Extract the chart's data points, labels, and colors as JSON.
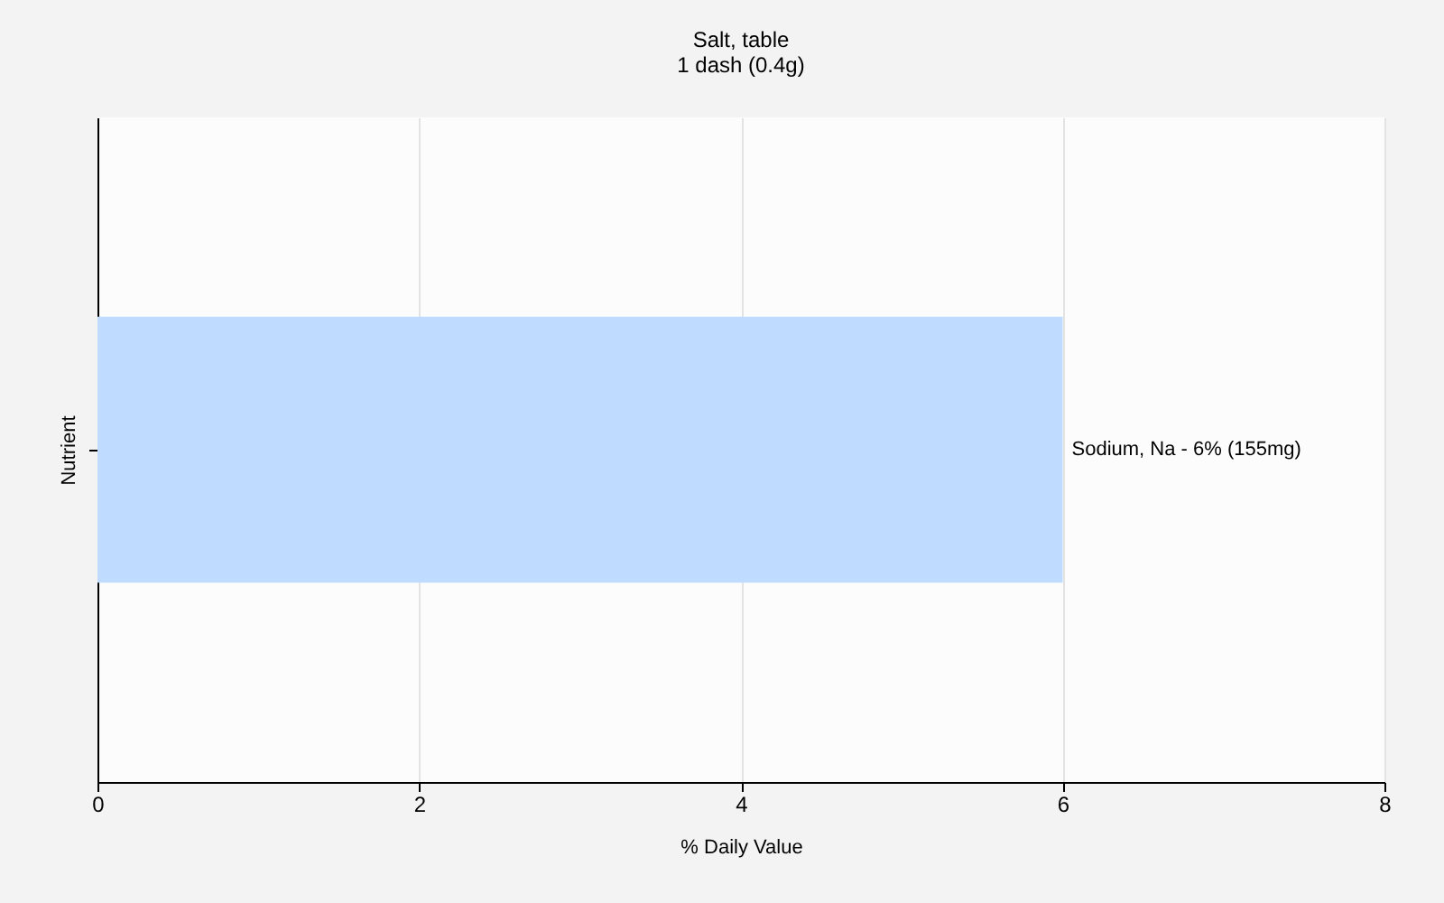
{
  "chart_data": {
    "type": "bar",
    "orientation": "horizontal",
    "title": "Salt, table",
    "subtitle": "1 dash (0.4g)",
    "xlabel": "% Daily Value",
    "ylabel": "Nutrient",
    "categories": [
      null
    ],
    "values": [
      6
    ],
    "color": "#bfdbff",
    "annotations": [
      {
        "text": "Sodium, Na - 6% (155mg)",
        "x": 6
      }
    ],
    "xlim": [
      0,
      8
    ],
    "xticks": [
      0,
      2,
      4,
      6,
      8
    ],
    "grid": "x"
  }
}
